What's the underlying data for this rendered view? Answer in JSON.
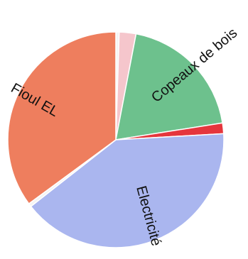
{
  "chart_data": {
    "type": "pie",
    "title": "",
    "slices": [
      {
        "label": "",
        "value": 0.5,
        "color": "#f4f4f4"
      },
      {
        "label": "",
        "value": 2.5,
        "color": "#f5c6cc"
      },
      {
        "label": "Copeaux de bois",
        "value": 19.5,
        "color": "#6dc18d"
      },
      {
        "label": "",
        "value": 1.6,
        "color": "#e5363d"
      },
      {
        "label": "Electricité",
        "value": 40.3,
        "color": "#aab6ef"
      },
      {
        "label": "",
        "value": 0.5,
        "color": "#f4f4f4"
      },
      {
        "label": "Fioul EL",
        "value": 35.1,
        "color": "#ee7e5e"
      }
    ]
  }
}
